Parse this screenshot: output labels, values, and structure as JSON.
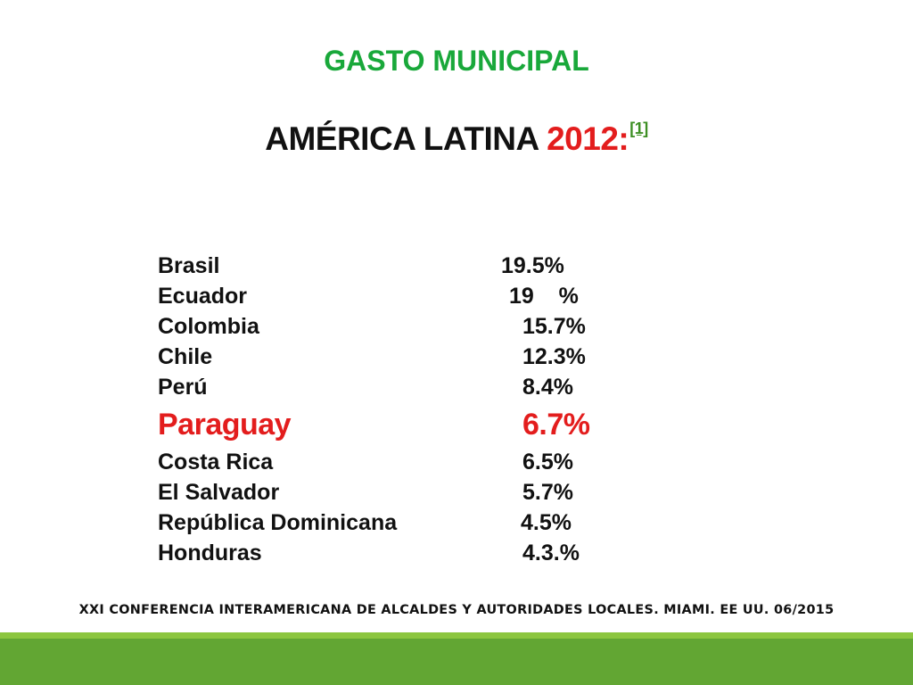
{
  "slide": {
    "heading_1": "GASTO MUNICIPAL",
    "heading_2": {
      "text": "AMÉRICA LATINA ",
      "year": "2012:",
      "footnote": "[1]"
    },
    "rows": [
      {
        "country": "Brasil",
        "value": "19.5%"
      },
      {
        "country": "Ecuador",
        "value": "19    %"
      },
      {
        "country": "Colombia",
        "value": "15.7%"
      },
      {
        "country": "Chile",
        "value": "12.3%"
      },
      {
        "country": "Perú",
        "value": "8.4%"
      },
      {
        "country": "Paraguay",
        "value": "6.7%",
        "highlight": true
      },
      {
        "country": "Costa Rica",
        "value": "6.5%"
      },
      {
        "country": "El Salvador",
        "value": "5.7%"
      },
      {
        "country": "República Dominicana",
        "value": "4.5%"
      },
      {
        "country": "Honduras",
        "value": "4.3.%"
      }
    ],
    "footer": "XXI CONFERENCIA INTERAMERICANA DE ALCALDES Y AUTORIDADES LOCALES. MIAMI. EE UU. 06/2015"
  },
  "colors": {
    "heading_green": "#19a83a",
    "highlight_red": "#e31d1d",
    "bar_light_green": "#8cc63f",
    "bar_dark_green": "#62a633"
  }
}
